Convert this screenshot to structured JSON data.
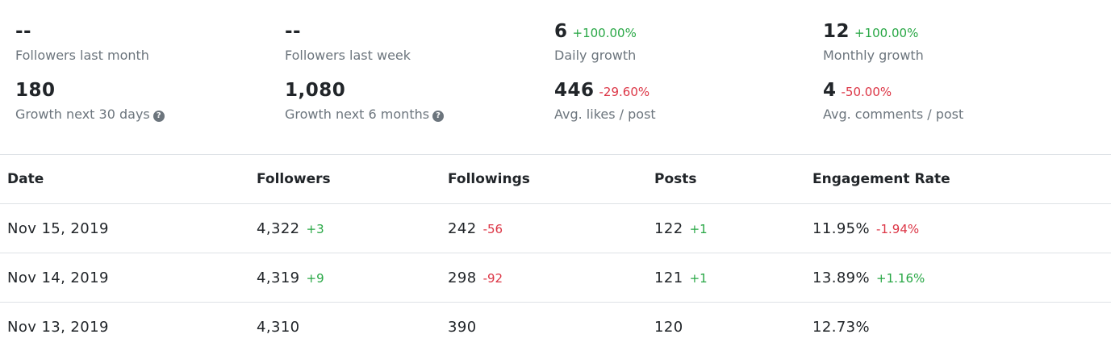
{
  "stats": [
    {
      "value": "--",
      "change": "",
      "label": "Followers last month",
      "help": false
    },
    {
      "value": "--",
      "change": "",
      "label": "Followers last week",
      "help": false
    },
    {
      "value": "6",
      "change": "+100.00%",
      "change_type": "positive",
      "label": "Daily growth",
      "help": false
    },
    {
      "value": "12",
      "change": "+100.00%",
      "change_type": "positive",
      "label": "Monthly growth",
      "help": false
    },
    {
      "value": "180",
      "change": "",
      "label": "Growth next 30 days",
      "help": true
    },
    {
      "value": "1,080",
      "change": "",
      "label": "Growth next 6 months",
      "help": true
    },
    {
      "value": "446",
      "change": "-29.60%",
      "change_type": "negative",
      "label": "Avg. likes / post",
      "help": false
    },
    {
      "value": "4",
      "change": "-50.00%",
      "change_type": "negative",
      "label": "Avg. comments / post",
      "help": false
    }
  ],
  "help_icon_glyph": "?",
  "table": {
    "headers": [
      "Date",
      "Followers",
      "Followings",
      "Posts",
      "Engagement Rate"
    ],
    "rows": [
      {
        "date": "Nov 15, 2019",
        "followers": "4,322",
        "followers_delta": "+3",
        "followers_delta_type": "positive",
        "followings": "242",
        "followings_delta": "-56",
        "followings_delta_type": "negative",
        "posts": "122",
        "posts_delta": "+1",
        "posts_delta_type": "positive",
        "engagement": "11.95%",
        "engagement_delta": "-1.94%",
        "engagement_delta_type": "negative"
      },
      {
        "date": "Nov 14, 2019",
        "followers": "4,319",
        "followers_delta": "+9",
        "followers_delta_type": "positive",
        "followings": "298",
        "followings_delta": "-92",
        "followings_delta_type": "negative",
        "posts": "121",
        "posts_delta": "+1",
        "posts_delta_type": "positive",
        "engagement": "13.89%",
        "engagement_delta": "+1.16%",
        "engagement_delta_type": "positive"
      },
      {
        "date": "Nov 13, 2019",
        "followers": "4,310",
        "followers_delta": "",
        "followers_delta_type": "",
        "followings": "390",
        "followings_delta": "",
        "followings_delta_type": "",
        "posts": "120",
        "posts_delta": "",
        "posts_delta_type": "",
        "engagement": "12.73%",
        "engagement_delta": "",
        "engagement_delta_type": ""
      }
    ]
  },
  "colors": {
    "positive": "#28a745",
    "negative": "#dc3545",
    "muted": "#6c757d",
    "text": "#212529",
    "border": "#dee2e6"
  }
}
